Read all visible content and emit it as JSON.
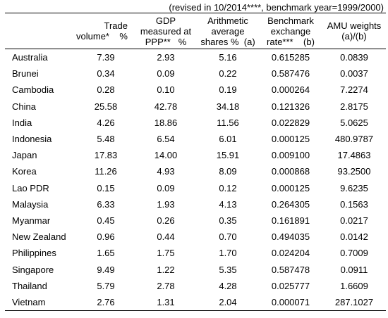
{
  "caption": "(revised in 10/2014****, benchmark year=1999/2000)",
  "headers": {
    "country": "",
    "trade": [
      "Trade",
      "volume*    %"
    ],
    "gdp": [
      "GDP",
      "measured at",
      "PPP**   %"
    ],
    "arith": [
      "Arithmetic",
      "average",
      "shares %  (a)"
    ],
    "bench": [
      "Benchmark",
      "exchange",
      "rate***    (b)"
    ],
    "amu": [
      "AMU weights",
      "(a)/(b)"
    ]
  },
  "rows": [
    {
      "country": "Australia",
      "trade": "7.39",
      "gdp": "2.93",
      "arith": "5.16",
      "bench": "0.615285",
      "amu": "0.0839"
    },
    {
      "country": "Brunei",
      "trade": "0.34",
      "gdp": "0.09",
      "arith": "0.22",
      "bench": "0.587476",
      "amu": "0.0037"
    },
    {
      "country": "Cambodia",
      "trade": "0.28",
      "gdp": "0.10",
      "arith": "0.19",
      "bench": "0.000264",
      "amu": "7.2274"
    },
    {
      "country": "China",
      "trade": "25.58",
      "gdp": "42.78",
      "arith": "34.18",
      "bench": "0.121326",
      "amu": "2.8175"
    },
    {
      "country": "India",
      "trade": "4.26",
      "gdp": "18.86",
      "arith": "11.56",
      "bench": "0.022829",
      "amu": "5.0625"
    },
    {
      "country": "Indonesia",
      "trade": "5.48",
      "gdp": "6.54",
      "arith": "6.01",
      "bench": "0.000125",
      "amu": "480.9787"
    },
    {
      "country": "Japan",
      "trade": "17.83",
      "gdp": "14.00",
      "arith": "15.91",
      "bench": "0.009100",
      "amu": "17.4863"
    },
    {
      "country": "Korea",
      "trade": "11.26",
      "gdp": "4.93",
      "arith": "8.09",
      "bench": "0.000868",
      "amu": "93.2500"
    },
    {
      "country": "Lao PDR",
      "trade": "0.15",
      "gdp": "0.09",
      "arith": "0.12",
      "bench": "0.000125",
      "amu": "9.6235"
    },
    {
      "country": "Malaysia",
      "trade": "6.33",
      "gdp": "1.93",
      "arith": "4.13",
      "bench": "0.264305",
      "amu": "0.1563"
    },
    {
      "country": "Myanmar",
      "trade": "0.45",
      "gdp": "0.26",
      "arith": "0.35",
      "bench": "0.161891",
      "amu": "0.0217"
    },
    {
      "country": "New Zealand",
      "trade": "0.96",
      "gdp": "0.44",
      "arith": "0.70",
      "bench": "0.494035",
      "amu": "0.0142"
    },
    {
      "country": "Philippines",
      "trade": "1.65",
      "gdp": "1.75",
      "arith": "1.70",
      "bench": "0.024204",
      "amu": "0.7009"
    },
    {
      "country": "Singapore",
      "trade": "9.49",
      "gdp": "1.22",
      "arith": "5.35",
      "bench": "0.587478",
      "amu": "0.0911"
    },
    {
      "country": "Thailand",
      "trade": "5.79",
      "gdp": "2.78",
      "arith": "4.28",
      "bench": "0.025777",
      "amu": "1.6609"
    },
    {
      "country": "Vietnam",
      "trade": "2.76",
      "gdp": "1.31",
      "arith": "2.04",
      "bench": "0.000071",
      "amu": "287.1027"
    }
  ]
}
